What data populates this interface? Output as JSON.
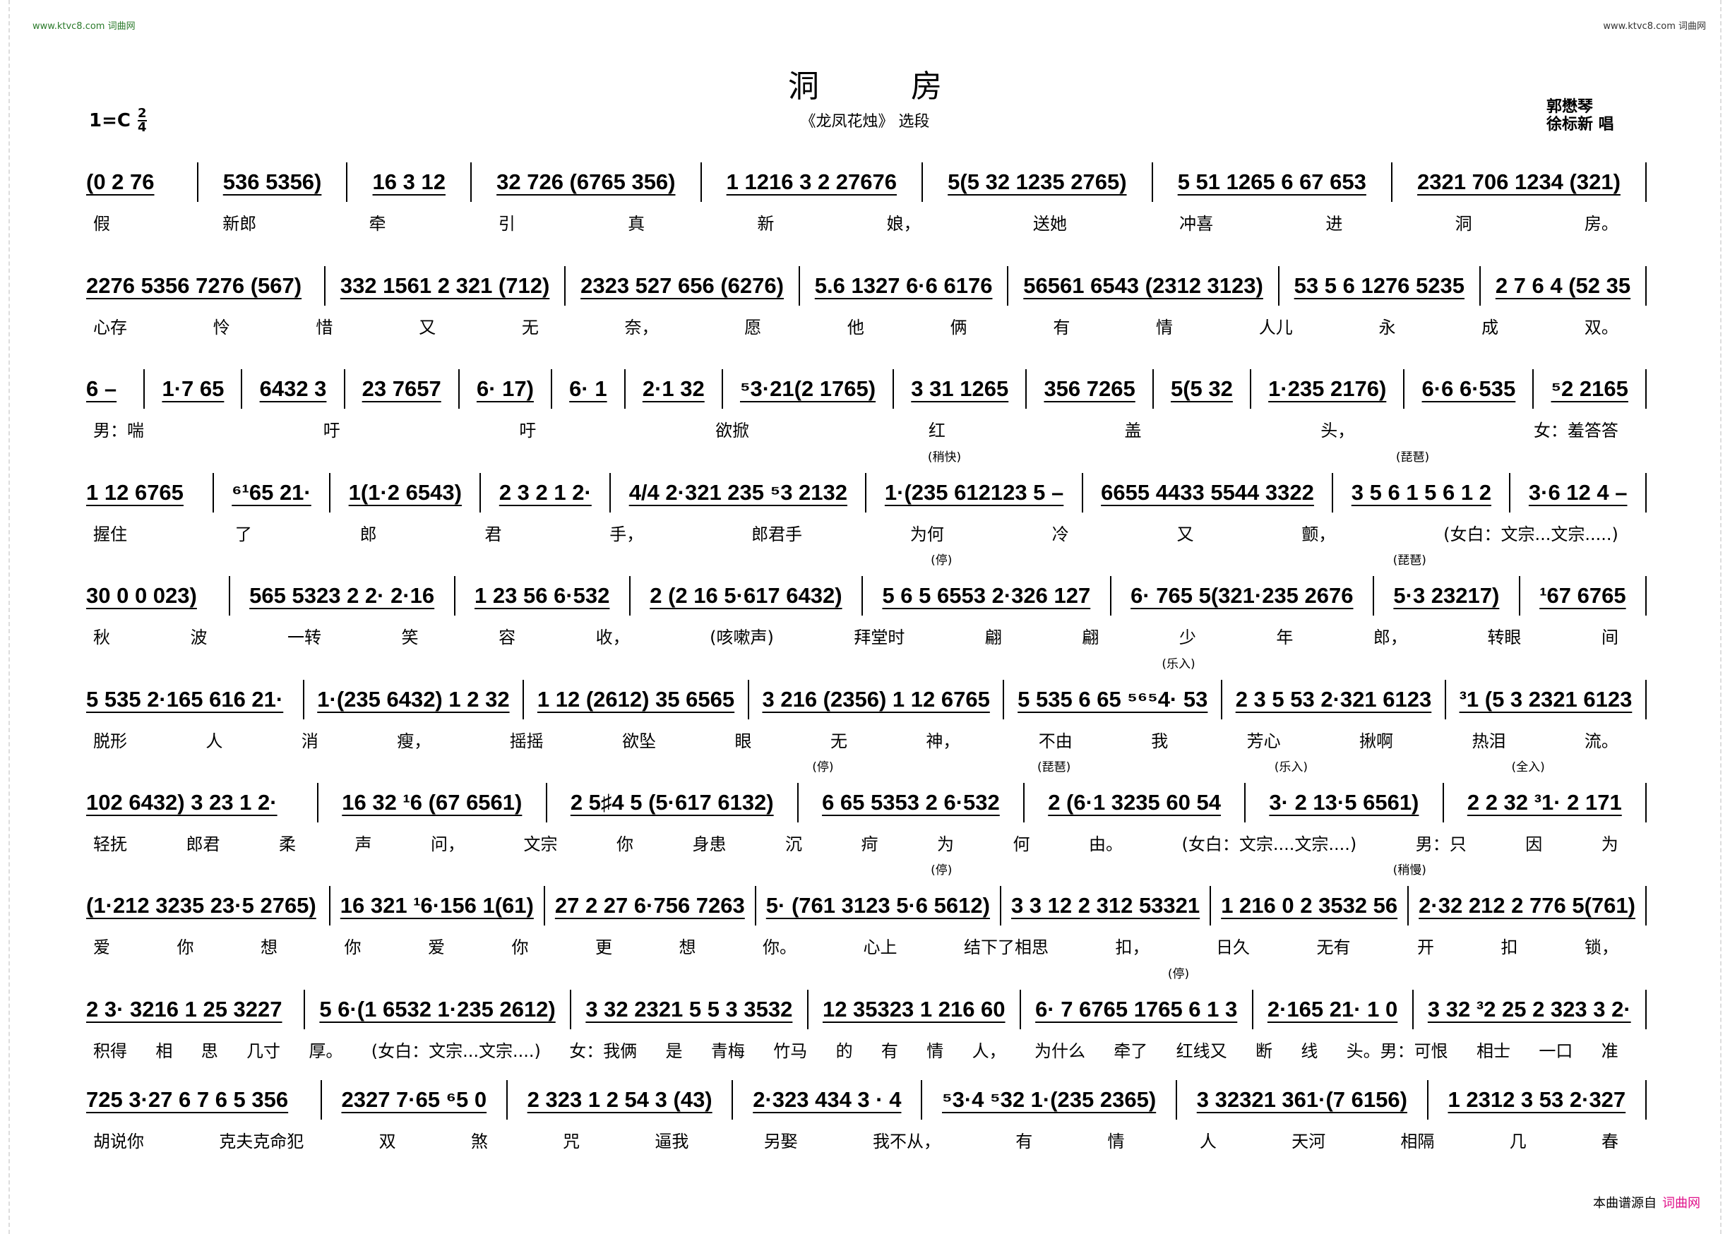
{
  "watermark": {
    "left": "www.ktvc8.com 词曲网",
    "right": "www.ktvc8.com 词曲网"
  },
  "header": {
    "title": "洞房",
    "subtitle": "《龙凤花烛》 选段",
    "key": "1=C",
    "time_top": "2",
    "time_bottom": "4",
    "credit_1": "郭懋琴",
    "credit_2": "徐标新  唱"
  },
  "lines": [
    {
      "measures": [
        "(0 2 76",
        "536 5356)",
        "16 3 12",
        "32 726 (6765 356)",
        "1 1216 3 2 27676",
        "5(5 32 1235 2765)",
        "5 51 1265 6 67 653",
        "2321 706 1234 (321)"
      ],
      "lyrics": [
        "假",
        "新郎",
        "牵",
        "引",
        "真",
        "新",
        "娘，",
        "送她",
        "冲喜",
        "进",
        "洞",
        "房。"
      ],
      "marks": []
    },
    {
      "measures": [
        "2276 5356 7276 (567)",
        "332 1561 2 321 (712)",
        "2323 527 656 (6276)",
        "5.6 1327 6·6 6176",
        "56561 6543 (2312 3123)",
        "53 5 6 1276 5235",
        "2 7 6 4 (52 35"
      ],
      "lyrics": [
        "心存",
        "怜",
        "惜",
        "又",
        "无",
        "奈，",
        "愿",
        "他",
        "俩",
        "有",
        "情",
        "人儿",
        "永",
        "成",
        "双。"
      ],
      "marks": []
    },
    {
      "measures": [
        "6 –",
        "1·7 65",
        "6432 3",
        "23 7657",
        "6· 17)",
        "6· 1",
        "2·1 32",
        "⁵3·21(2 1765)",
        "3 31 1265",
        "356 7265",
        "5(5 32",
        "1·235 2176)",
        "6·6 6·535",
        "⁵2 2165"
      ],
      "lyrics": [
        "男：喘",
        "吁",
        "吁",
        "欲掀",
        "红",
        "盖",
        "头，",
        "女：羞答答"
      ],
      "marks": []
    },
    {
      "measures": [
        "1 12 6765",
        "⁶¹65 21·",
        "1(1·2 6543)",
        "2 3 2 1 2·",
        "4/4 2·321 235 ⁵3 2132",
        "1·(235 612123 5 –",
        "6655 4433 5544 3322",
        "3 5 6 1 5 6 1 2",
        "3·6 12 4 –"
      ],
      "lyrics": [
        "握住",
        "了",
        "郎",
        "君",
        "手，",
        "郎君手",
        "为何",
        "冷",
        "又",
        "颤，",
        "(女白：文宗...文宗.....)"
      ],
      "marks": [
        "(稍快)",
        "(琵琶)"
      ]
    },
    {
      "measures": [
        "30 0 0 023)",
        "565 5323 2 2· 2·16",
        "1 23 56 6·532",
        "2 (2 16 5·617 6432)",
        "5 6 5 6553 2·326 127",
        "6· 765 5(321·235 2676",
        "5·3 23217)",
        "¹67 6765"
      ],
      "lyrics": [
        "秋",
        "波",
        "一转",
        "笑",
        "容",
        "收，",
        "(咳嗽声)",
        "拜堂时",
        "翩",
        "翩",
        "少",
        "年",
        "郎，",
        "转眼",
        "间"
      ],
      "marks": [
        "(停)",
        "(琵琶)"
      ]
    },
    {
      "measures": [
        "5 535 2·165 616 21·",
        "1·(235 6432) 1 2 32",
        "1 12 (2612) 35 6565",
        "3 216 (2356) 1 12 6765",
        "5 535 6 65 ⁵⁶⁵4· 53",
        "2 3 5 53 2·321 6123",
        "³1 (5 3 2321 6123"
      ],
      "lyrics": [
        "脱形",
        "人",
        "消",
        "瘦，",
        "摇摇",
        "欲坠",
        "眼",
        "无",
        "神，",
        "不由",
        "我",
        "芳心",
        "揪啊",
        "热泪",
        "流。"
      ],
      "marks": [
        "(乐入)"
      ]
    },
    {
      "measures": [
        "102 6432) 3 23 1 2·",
        "16 32 ¹6 (67 6561)",
        "2 5♯4 5 (5·617 6132)",
        "6 65 5353 2 6·532",
        "2 (6·1 3235 60 54",
        "3· 2 13·5 6561)",
        "2 2 32 ³1· 2 171"
      ],
      "lyrics": [
        "轻抚",
        "郎君",
        "柔",
        "声",
        "问，",
        "文宗",
        "你",
        "身患",
        "沉",
        "疴",
        "为",
        "何",
        "由。",
        "(女白：文宗....文宗....)",
        "男：只",
        "因",
        "为"
      ],
      "marks": [
        "(停)",
        "(琵琶)",
        "(乐入)",
        "(全入)"
      ]
    },
    {
      "measures": [
        "(1·212 3235 23·5 2765)",
        "16 321 ¹6·156 1(61)",
        "27 2 27 6·756 7263",
        "5· (761 3123 5·6 5612)",
        "3 3 12 2 312 53321",
        "1 216 0 2 3532 56",
        "2·32 212 2 776 5(761)"
      ],
      "lyrics": [
        "爱",
        "你",
        "想",
        "你",
        "爱",
        "你",
        "更",
        "想",
        "你。",
        "心上",
        "结下了相思",
        "扣，",
        "日久",
        "无有",
        "开",
        "扣",
        "锁，"
      ],
      "marks": [
        "(停)",
        "(稍慢)"
      ]
    },
    {
      "measures": [
        "2 3· 3216 1 25 3227",
        "5 6·(1 6532 1·235 2612)",
        "3 32 2321 5 5 3 3532",
        "12 35323 1 216 60",
        "6· 7 6765 1765 6 1 3",
        "2·165 21· 1 0",
        "3 32 ³2 25 2 323 3 2·"
      ],
      "lyrics": [
        "积得",
        "相",
        "思",
        "几寸",
        "厚。",
        "(女白：文宗...文宗....)",
        "女：我俩",
        "是",
        "青梅",
        "竹马",
        "的",
        "有",
        "情",
        "人，",
        "为什么",
        "牵了",
        "红线又",
        "断",
        "线",
        "头。男：可恨",
        "相士",
        "一口",
        "准"
      ],
      "marks": [
        "(停)"
      ]
    },
    {
      "measures": [
        "725 3·27 6 7 6 5 356",
        "2327 7·65 ⁶5 0",
        "2 323 1 2 54 3 (43)",
        "2·323 434 3 · 4",
        "⁵3·4 ⁵32 1·(235 2365)",
        "3 32321 361·(7 6156)",
        "1 2312 3 53 2·327"
      ],
      "lyrics": [
        "胡说你",
        "克夫克命犯",
        "双",
        "煞",
        "咒",
        "逼我",
        "另娶",
        "我不从，",
        "有",
        "情",
        "人",
        "天河",
        "相隔",
        "几",
        "春"
      ],
      "marks": []
    }
  ],
  "footer": {
    "source": "本曲谱源自",
    "brand": "词曲网"
  },
  "colors": {
    "brand": "#e0118a",
    "watermark_left": "#2a7a2a"
  }
}
